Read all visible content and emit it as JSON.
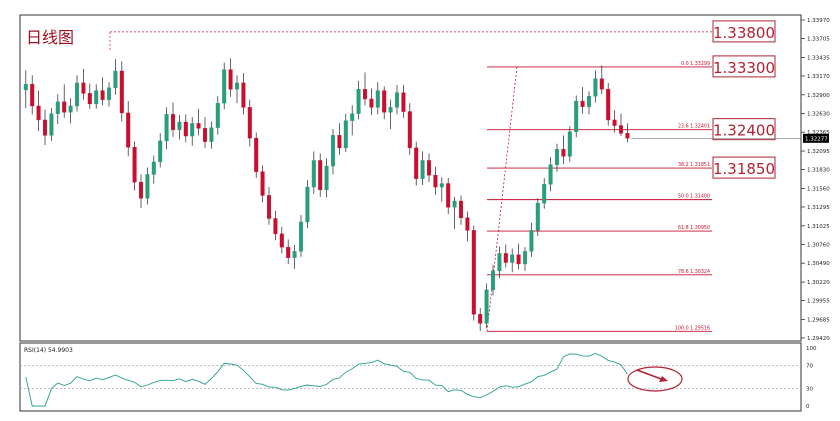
{
  "chart_title": "日线图",
  "price_axis": {
    "ticks": [
      "1.33970",
      "1.33705",
      "1.33435",
      "1.33170",
      "1.32900",
      "1.32630",
      "1.32365",
      "1.32095",
      "1.31830",
      "1.31560",
      "1.31295",
      "1.31025",
      "1.30760",
      "1.30490",
      "1.30220",
      "1.29955",
      "1.29685",
      "1.29420"
    ],
    "current_price": "1.32277"
  },
  "callouts": [
    "1.33800",
    "1.33300",
    "1.32400",
    "1.31850"
  ],
  "fib_labels": [
    "0.0  1.33299",
    "23.6  1.32401",
    "38.2  1.31851",
    "50.0  1.31400",
    "61.8  1.30950",
    "78.6  1.30324",
    "100.0  1.29516"
  ],
  "rsi": {
    "label": "RSI(14) 54.9903",
    "ticks": [
      "100",
      "70",
      "30",
      "0"
    ]
  },
  "colors": {
    "bull": "#2a9d7c",
    "bear": "#c8102e",
    "fib": "#c8102e",
    "rsi_line": "#2a9d8f",
    "annotation": "#b22234"
  },
  "chart_data": {
    "type": "candlestick",
    "title": "日线图",
    "ylim": [
      1.2942,
      1.3397
    ],
    "fibonacci": {
      "levels": [
        0.0,
        23.6,
        38.2,
        50.0,
        61.8,
        78.6,
        100.0
      ],
      "prices": [
        1.33299,
        1.32401,
        1.31851,
        1.314,
        1.3095,
        1.30324,
        1.29516
      ]
    },
    "resistance_line": 1.338,
    "rsi_period": 14,
    "rsi_value": 54.9903,
    "rsi_levels": [
      70,
      30
    ],
    "ohlc": [
      [
        1.3297,
        1.3325,
        1.3271,
        1.3305
      ],
      [
        1.3305,
        1.3318,
        1.3262,
        1.3274
      ],
      [
        1.3274,
        1.3296,
        1.3238,
        1.3254
      ],
      [
        1.3254,
        1.3269,
        1.3218,
        1.3232
      ],
      [
        1.3232,
        1.3271,
        1.3224,
        1.3263
      ],
      [
        1.3263,
        1.3291,
        1.3248,
        1.328
      ],
      [
        1.328,
        1.3305,
        1.3257,
        1.3265
      ],
      [
        1.3265,
        1.3285,
        1.3249,
        1.3274
      ],
      [
        1.3274,
        1.3318,
        1.3266,
        1.3307
      ],
      [
        1.3307,
        1.3327,
        1.3283,
        1.3292
      ],
      [
        1.3292,
        1.3306,
        1.327,
        1.3277
      ],
      [
        1.3277,
        1.3305,
        1.327,
        1.3296
      ],
      [
        1.3296,
        1.3315,
        1.3275,
        1.3283
      ],
      [
        1.3283,
        1.3308,
        1.3273,
        1.33
      ],
      [
        1.33,
        1.3341,
        1.329,
        1.3324
      ],
      [
        1.3324,
        1.3338,
        1.3252,
        1.3264
      ],
      [
        1.3264,
        1.3281,
        1.3202,
        1.3215
      ],
      [
        1.3215,
        1.3223,
        1.3153,
        1.3165
      ],
      [
        1.3165,
        1.3176,
        1.3128,
        1.3142
      ],
      [
        1.3142,
        1.3186,
        1.3133,
        1.3176
      ],
      [
        1.3176,
        1.3203,
        1.3163,
        1.3194
      ],
      [
        1.3194,
        1.3235,
        1.3186,
        1.3224
      ],
      [
        1.3224,
        1.3272,
        1.3212,
        1.3262
      ],
      [
        1.3262,
        1.3279,
        1.323,
        1.324
      ],
      [
        1.324,
        1.3261,
        1.3226,
        1.3251
      ],
      [
        1.3251,
        1.3262,
        1.3222,
        1.3231
      ],
      [
        1.3231,
        1.3258,
        1.3217,
        1.3249
      ],
      [
        1.3249,
        1.327,
        1.3232,
        1.3242
      ],
      [
        1.3242,
        1.3258,
        1.3214,
        1.3223
      ],
      [
        1.3223,
        1.3252,
        1.3213,
        1.3243
      ],
      [
        1.3243,
        1.3288,
        1.3233,
        1.3278
      ],
      [
        1.3278,
        1.3336,
        1.3269,
        1.3326
      ],
      [
        1.3326,
        1.3342,
        1.3287,
        1.3298
      ],
      [
        1.3298,
        1.3318,
        1.3278,
        1.3307
      ],
      [
        1.3307,
        1.3321,
        1.3262,
        1.3272
      ],
      [
        1.3272,
        1.3283,
        1.3216,
        1.3228
      ],
      [
        1.3228,
        1.3236,
        1.3171,
        1.318
      ],
      [
        1.318,
        1.3189,
        1.3136,
        1.3146
      ],
      [
        1.3146,
        1.3158,
        1.3104,
        1.3113
      ],
      [
        1.3113,
        1.3124,
        1.3082,
        1.3091
      ],
      [
        1.3091,
        1.3101,
        1.3063,
        1.3072
      ],
      [
        1.3072,
        1.3083,
        1.3048,
        1.3057
      ],
      [
        1.3057,
        1.3075,
        1.3041,
        1.3066
      ],
      [
        1.3066,
        1.3118,
        1.3058,
        1.3108
      ],
      [
        1.3108,
        1.3168,
        1.3099,
        1.3158
      ],
      [
        1.3158,
        1.3209,
        1.3148,
        1.3196
      ],
      [
        1.3196,
        1.3206,
        1.3144,
        1.3154
      ],
      [
        1.3154,
        1.3199,
        1.3143,
        1.3188
      ],
      [
        1.3188,
        1.3241,
        1.3176,
        1.3232
      ],
      [
        1.3232,
        1.3249,
        1.3204,
        1.3214
      ],
      [
        1.3214,
        1.3263,
        1.3208,
        1.3253
      ],
      [
        1.3253,
        1.3275,
        1.3232,
        1.3263
      ],
      [
        1.3263,
        1.331,
        1.3255,
        1.3298
      ],
      [
        1.3298,
        1.3322,
        1.3275,
        1.3284
      ],
      [
        1.3284,
        1.3299,
        1.3261,
        1.3272
      ],
      [
        1.3272,
        1.3308,
        1.3262,
        1.3296
      ],
      [
        1.3296,
        1.3302,
        1.3255,
        1.3265
      ],
      [
        1.3265,
        1.3283,
        1.3241,
        1.3272
      ],
      [
        1.3272,
        1.3304,
        1.3262,
        1.3293
      ],
      [
        1.3293,
        1.3304,
        1.3257,
        1.3266
      ],
      [
        1.3266,
        1.3278,
        1.3204,
        1.3214
      ],
      [
        1.3214,
        1.3223,
        1.316,
        1.317
      ],
      [
        1.317,
        1.3209,
        1.3161,
        1.3196
      ],
      [
        1.3196,
        1.3206,
        1.3165,
        1.3175
      ],
      [
        1.3175,
        1.3187,
        1.3147,
        1.3158
      ],
      [
        1.3158,
        1.3172,
        1.3137,
        1.3163
      ],
      [
        1.3163,
        1.3171,
        1.3119,
        1.3129
      ],
      [
        1.3129,
        1.3144,
        1.3098,
        1.3138
      ],
      [
        1.3138,
        1.3146,
        1.3104,
        1.3114
      ],
      [
        1.3114,
        1.3123,
        1.308,
        1.3096
      ],
      [
        1.3096,
        1.3103,
        1.2967,
        1.2976
      ],
      [
        1.2976,
        1.2985,
        1.2952,
        1.2963
      ],
      [
        1.2963,
        1.302,
        1.2956,
        1.3011
      ],
      [
        1.3011,
        1.3047,
        1.3003,
        1.3038
      ],
      [
        1.3038,
        1.3073,
        1.3028,
        1.3063
      ],
      [
        1.3063,
        1.3076,
        1.3043,
        1.305
      ],
      [
        1.305,
        1.307,
        1.3036,
        1.3061
      ],
      [
        1.3061,
        1.3077,
        1.304,
        1.3048
      ],
      [
        1.3048,
        1.3072,
        1.3038,
        1.3066
      ],
      [
        1.3066,
        1.3107,
        1.3058,
        1.3096
      ],
      [
        1.3096,
        1.3142,
        1.3088,
        1.3135
      ],
      [
        1.3135,
        1.3171,
        1.3127,
        1.3162
      ],
      [
        1.3162,
        1.3201,
        1.3152,
        1.319
      ],
      [
        1.319,
        1.322,
        1.318,
        1.3212
      ],
      [
        1.3212,
        1.3232,
        1.3191,
        1.3202
      ],
      [
        1.3202,
        1.3245,
        1.3194,
        1.3237
      ],
      [
        1.3237,
        1.3289,
        1.3229,
        1.3281
      ],
      [
        1.3281,
        1.3301,
        1.3263,
        1.3273
      ],
      [
        1.3273,
        1.3295,
        1.3262,
        1.3288
      ],
      [
        1.3288,
        1.3325,
        1.3279,
        1.3313
      ],
      [
        1.3313,
        1.3332,
        1.3291,
        1.3298
      ],
      [
        1.3298,
        1.3307,
        1.3246,
        1.3254
      ],
      [
        1.3254,
        1.3268,
        1.3236,
        1.3246
      ],
      [
        1.3246,
        1.3263,
        1.3231,
        1.3235
      ],
      [
        1.3235,
        1.3249,
        1.3222,
        1.3228
      ]
    ]
  }
}
